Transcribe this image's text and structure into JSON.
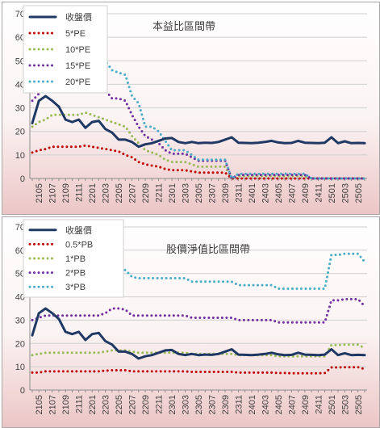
{
  "chart_data": [
    {
      "type": "line",
      "title": "本益比區間帶",
      "ylim": [
        0,
        70
      ],
      "yticks": [
        0,
        10,
        20,
        30,
        40,
        50,
        60,
        70
      ],
      "grid": true,
      "legend_position": "top-left",
      "x": [
        "2104",
        "2105",
        "2106",
        "2107",
        "2108",
        "2109",
        "2110",
        "2111",
        "2112",
        "2201",
        "2202",
        "2203",
        "2204",
        "2205",
        "2206",
        "2207",
        "2208",
        "2209",
        "2210",
        "2211",
        "2212",
        "2301",
        "2302",
        "2303",
        "2304",
        "2305",
        "2306",
        "2307",
        "2308",
        "2309",
        "2310",
        "2311",
        "2312",
        "2401",
        "2402",
        "2403",
        "2404",
        "2405",
        "2406",
        "2407",
        "2408",
        "2409",
        "2410",
        "2411",
        "2412",
        "2501",
        "2502",
        "2503",
        "2504",
        "2505",
        "2506"
      ],
      "xtick_labels": [
        "2105",
        "2107",
        "2109",
        "2111",
        "2201",
        "2203",
        "2205",
        "2207",
        "2209",
        "2211",
        "2301",
        "2303",
        "2305",
        "2307",
        "2309",
        "2311",
        "2401",
        "2403",
        "2405",
        "2407",
        "2409",
        "2411",
        "2501",
        "2503",
        "2505"
      ],
      "series": [
        {
          "name": "收盤價",
          "color": "#1f3864",
          "style": "solid",
          "values": [
            23.5,
            33,
            35,
            33,
            30.5,
            25,
            24,
            25,
            21.5,
            24,
            24.5,
            21,
            19.5,
            16.5,
            16.5,
            15.5,
            13.5,
            14.5,
            15,
            16,
            17,
            17.2,
            15.5,
            15,
            15.5,
            15,
            15.2,
            15.1,
            15.5,
            16.5,
            17.5,
            15.2,
            15.1,
            15,
            15.2,
            15.5,
            16,
            15.3,
            15,
            15.1,
            16,
            15.2,
            15.1,
            15,
            15.2,
            17.5,
            15,
            15.8,
            15,
            15.1,
            15
          ]
        },
        {
          "name": "5*PE",
          "color": "#c00000",
          "style": "dotted",
          "values": [
            11,
            12,
            12.5,
            13.5,
            13.5,
            13.5,
            13.5,
            13.5,
            14,
            13.5,
            13,
            12.5,
            12,
            11.5,
            10,
            9,
            7,
            6,
            5.5,
            5,
            4,
            3.5,
            3.5,
            3.5,
            3,
            2.5,
            2.5,
            2.5,
            2.5,
            2.5,
            0,
            0,
            0,
            0,
            0,
            0,
            0,
            0,
            0,
            0,
            0,
            0,
            0,
            0,
            0,
            0,
            0,
            0,
            0,
            0,
            0
          ]
        },
        {
          "name": "10*PE",
          "color": "#9bbb59",
          "style": "dotted",
          "values": [
            22,
            24,
            25,
            27,
            27,
            27,
            27,
            27,
            28,
            27,
            26,
            25,
            24,
            23,
            22,
            18,
            15,
            12,
            11,
            10,
            8,
            7,
            7,
            7,
            6,
            5,
            5,
            5,
            5,
            5,
            0,
            1,
            1,
            1,
            1,
            1,
            1,
            1,
            1,
            1,
            1,
            1,
            0,
            0,
            0,
            0,
            0,
            0,
            0,
            0,
            0
          ]
        },
        {
          "name": "15*PE",
          "color": "#7030a0",
          "style": "dotted",
          "values": [
            33,
            36,
            37.5,
            40,
            40.5,
            40.5,
            40.5,
            40.5,
            42,
            40.5,
            39,
            37.5,
            34,
            34,
            33,
            27,
            22,
            18,
            16.5,
            15,
            12,
            10.5,
            10.5,
            10.5,
            9,
            7.5,
            7.5,
            7.5,
            7.5,
            7.5,
            0,
            1.5,
            1.5,
            1.5,
            1.5,
            1.5,
            1.5,
            1.5,
            1.5,
            1.5,
            1.5,
            1.5,
            0,
            0,
            0,
            0,
            0,
            0,
            0,
            0,
            0
          ]
        },
        {
          "name": "20*PE",
          "color": "#4bacc6",
          "style": "dotted",
          "values": [
            44,
            48,
            50,
            54,
            54,
            54,
            54,
            54,
            56,
            54,
            52,
            50,
            46,
            45,
            44,
            35,
            32,
            22,
            22,
            20,
            16,
            12,
            12,
            12,
            10,
            8,
            8,
            8,
            8,
            8,
            0,
            2,
            2,
            2,
            2,
            2,
            2,
            2,
            2,
            2,
            2,
            2,
            0,
            0,
            0,
            0,
            0,
            0,
            0,
            0,
            0
          ]
        }
      ]
    },
    {
      "type": "line",
      "title": "股價淨值比區間帶",
      "ylim": [
        0,
        70
      ],
      "yticks": [
        0,
        10,
        20,
        30,
        40,
        50,
        60,
        70
      ],
      "grid": true,
      "legend_position": "top-left",
      "x": [
        "2104",
        "2105",
        "2106",
        "2107",
        "2108",
        "2109",
        "2110",
        "2111",
        "2112",
        "2201",
        "2202",
        "2203",
        "2204",
        "2205",
        "2206",
        "2207",
        "2208",
        "2209",
        "2210",
        "2211",
        "2212",
        "2301",
        "2302",
        "2303",
        "2304",
        "2305",
        "2306",
        "2307",
        "2308",
        "2309",
        "2310",
        "2311",
        "2312",
        "2401",
        "2402",
        "2403",
        "2404",
        "2405",
        "2406",
        "2407",
        "2408",
        "2409",
        "2410",
        "2411",
        "2412",
        "2501",
        "2502",
        "2503",
        "2504",
        "2505",
        "2506"
      ],
      "xtick_labels": [
        "2105",
        "2107",
        "2109",
        "2111",
        "2201",
        "2203",
        "2205",
        "2207",
        "2209",
        "2211",
        "2301",
        "2303",
        "2305",
        "2307",
        "2309",
        "2311",
        "2401",
        "2403",
        "2405",
        "2407",
        "2409",
        "2411",
        "2501",
        "2503",
        "2505"
      ],
      "series": [
        {
          "name": "收盤價",
          "color": "#1f3864",
          "style": "solid",
          "values": [
            23.5,
            33,
            35,
            33,
            30.5,
            25,
            24,
            25,
            21.5,
            24,
            24.5,
            21,
            19.5,
            16.5,
            16.5,
            15.5,
            13.5,
            14.5,
            15,
            16,
            17,
            17.2,
            15.5,
            15,
            15.5,
            15,
            15.2,
            15.1,
            15.5,
            16.5,
            17.5,
            15.2,
            15.1,
            15,
            15.2,
            15.5,
            16,
            15.3,
            15,
            15.1,
            16,
            15.2,
            15.1,
            15,
            15.2,
            17.5,
            15,
            15.8,
            15,
            15.1,
            15
          ]
        },
        {
          "name": "0.5*PB",
          "color": "#c00000",
          "style": "dotted",
          "values": [
            7.5,
            7.5,
            8,
            8,
            8,
            8,
            8,
            8,
            8,
            8,
            8,
            8.3,
            8.5,
            8.5,
            8.5,
            8,
            8,
            8,
            8,
            8,
            8,
            8,
            8,
            8,
            7.8,
            7.8,
            7.8,
            7.8,
            7.8,
            7.8,
            7.8,
            7.5,
            7.5,
            7.5,
            7.5,
            7.5,
            7.5,
            7.3,
            7.3,
            7.2,
            7.2,
            7.2,
            7.2,
            7.2,
            7.3,
            9.7,
            9.7,
            9.8,
            9.8,
            9.8,
            9
          ]
        },
        {
          "name": "1*PB",
          "color": "#9bbb59",
          "style": "dotted",
          "values": [
            15,
            15.5,
            16,
            16,
            16,
            16,
            16,
            16,
            16,
            16,
            16,
            16.5,
            17,
            17,
            17,
            16.5,
            16,
            16,
            16,
            16,
            16,
            16,
            16,
            16,
            15.5,
            15.5,
            15.5,
            15.5,
            15.5,
            15.5,
            15.5,
            15,
            15,
            15,
            15,
            15,
            15,
            14.5,
            14.5,
            14.5,
            14.5,
            14.5,
            14.5,
            14.5,
            14.5,
            19.3,
            19.3,
            19.5,
            19.5,
            19.5,
            18
          ]
        },
        {
          "name": "2*PB",
          "color": "#7030a0",
          "style": "dotted",
          "values": [
            30,
            31,
            32,
            32,
            32,
            32,
            32,
            32,
            32,
            32,
            32,
            33,
            35,
            35,
            34.5,
            32,
            32,
            32,
            32,
            32,
            32,
            32,
            32,
            32,
            31,
            31,
            31,
            31,
            31,
            31,
            31,
            30,
            30,
            30,
            30,
            30,
            30,
            29,
            29,
            29,
            29,
            29,
            29,
            29,
            29,
            38.5,
            38.5,
            39,
            39,
            39,
            36
          ]
        },
        {
          "name": "3*PB",
          "color": "#4bacc6",
          "style": "dotted",
          "values": [
            45,
            46.5,
            48,
            48,
            48,
            48,
            48,
            48,
            48,
            48,
            48,
            49.5,
            52,
            52,
            51.5,
            48.5,
            48,
            48,
            48,
            48,
            48,
            48,
            48,
            48,
            46.5,
            46.5,
            46.5,
            46.5,
            46.5,
            46.5,
            46.5,
            45,
            45,
            45,
            45,
            45,
            45,
            43.5,
            43.5,
            43.5,
            43.5,
            43.5,
            43.5,
            43.5,
            43.5,
            58,
            58,
            58.5,
            58.5,
            58.5,
            55
          ]
        }
      ]
    }
  ]
}
